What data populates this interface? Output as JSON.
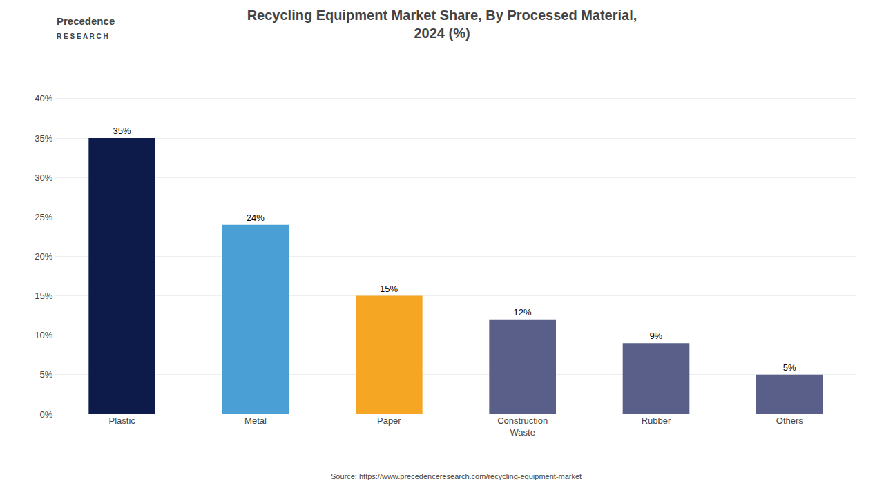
{
  "chart_data": {
    "type": "bar",
    "title": "Recycling Equipment Market Share, By Processed Material,\n2024 (%)",
    "categories": [
      "Plastic",
      "Metal",
      "Paper",
      "Construction\nWaste",
      "Rubber",
      "Others"
    ],
    "values": [
      35,
      24,
      15,
      12,
      9,
      5
    ],
    "value_labels": [
      "35%",
      "24%",
      "15%",
      "12%",
      "9%",
      "5%"
    ],
    "data_labels": true,
    "colors": [
      "#0d1b4b",
      "#4a9fd4",
      "#f5a623",
      "#5a5f8a",
      "#5a5f8a",
      "#5a5f8a"
    ],
    "ylim": [
      0,
      42
    ],
    "yticks": [
      {
        "value": 0,
        "label": "0%"
      },
      {
        "value": 5,
        "label": "5%"
      },
      {
        "value": 10,
        "label": "10%"
      },
      {
        "value": 15,
        "label": "15%"
      },
      {
        "value": 20,
        "label": "20%"
      },
      {
        "value": 25,
        "label": "25%"
      },
      {
        "value": 30,
        "label": "30%"
      },
      {
        "value": 35,
        "label": "35%"
      },
      {
        "value": 40,
        "label": "40%"
      }
    ],
    "grid": true,
    "annotations": [
      "Precedence",
      "R E S E A R C H",
      "Source: https://www.precedenceresearch.com/recycling-equipment-market"
    ]
  }
}
